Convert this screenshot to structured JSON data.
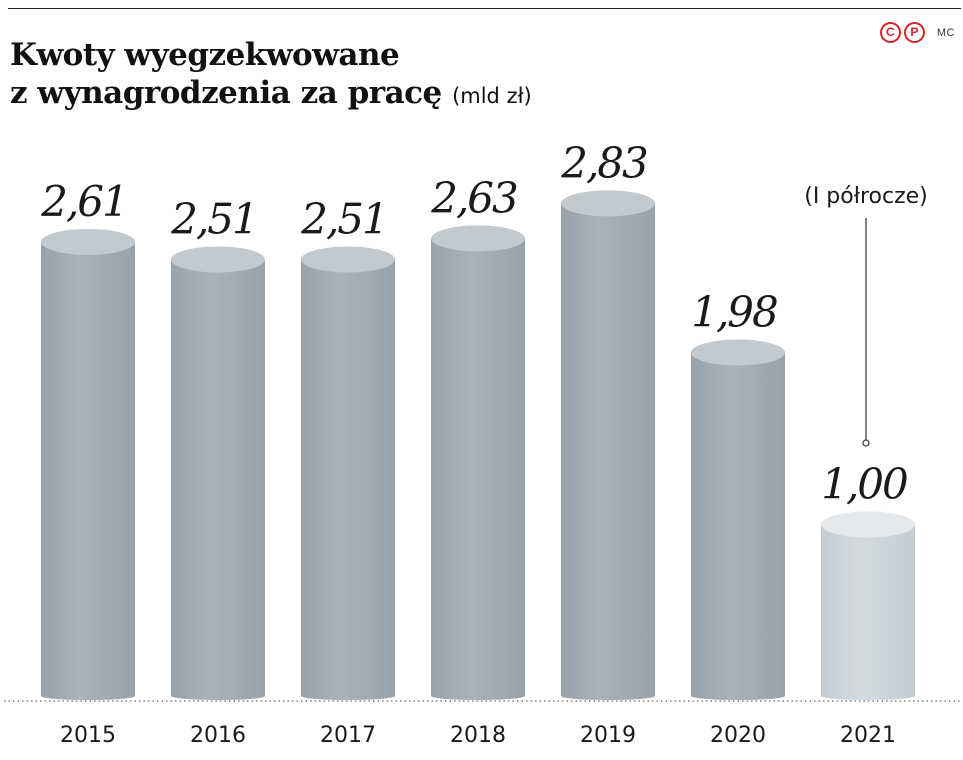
{
  "header": {
    "title_line1": "Kwoty wyegzekwowane",
    "title_line2": "z wynagrodzenia za pracę",
    "unit": "(mld zł)"
  },
  "logo": {
    "symbol1": "C",
    "symbol2": "P",
    "initials": "MC"
  },
  "chart_data": {
    "type": "bar",
    "title": "Kwoty wyegzekwowane z wynagrodzenia za pracę",
    "unit": "(mld zł)",
    "categories": [
      "2015",
      "2016",
      "2017",
      "2018",
      "2019",
      "2020",
      "2021"
    ],
    "values": [
      2.61,
      2.51,
      2.51,
      2.63,
      2.83,
      1.98,
      1.0
    ],
    "value_labels": [
      "2,61",
      "2,51",
      "2,51",
      "2,63",
      "2,83",
      "1,98",
      "1,00"
    ],
    "annotation": {
      "category": "2021",
      "text": "(I półrocze)"
    },
    "grid": false,
    "colors": {
      "bar": "#a9b3ba",
      "bar_highlight": "#d4dade",
      "text": "#1a1a1a"
    }
  }
}
